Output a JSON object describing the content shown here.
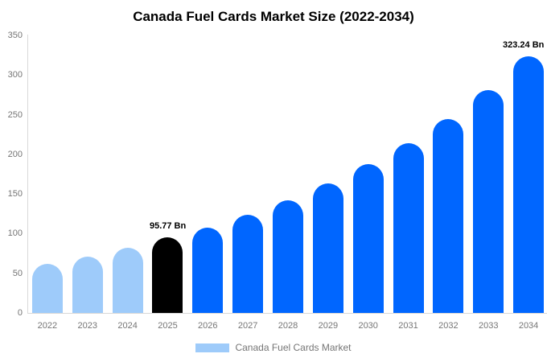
{
  "title": "Canada Fuel Cards Market Size (2022-2034)",
  "colors": {
    "axis_line": "#d8d8d8",
    "tick_text": "#757575",
    "title_text": "#000000",
    "annotation_text": "#000000",
    "light_blue": "#9ecbfa",
    "highlight_black": "#000000",
    "blue": "#0066ff"
  },
  "legend": {
    "label": "Canada Fuel Cards Market",
    "swatch_color": "#9ecbfa"
  },
  "chart_data": {
    "type": "bar",
    "title": "Canada Fuel Cards Market Size (2022-2034)",
    "xlabel": "",
    "ylabel": "",
    "ylim": [
      0,
      350
    ],
    "y_ticks": [
      0,
      50,
      100,
      150,
      200,
      250,
      300,
      350
    ],
    "grid": false,
    "legend_position": "bottom",
    "categories": [
      "2022",
      "2023",
      "2024",
      "2025",
      "2026",
      "2027",
      "2028",
      "2029",
      "2030",
      "2031",
      "2032",
      "2033",
      "2034"
    ],
    "series": [
      {
        "name": "Canada Fuel Cards Market",
        "values": [
          62,
          71,
          82,
          95.77,
          108,
          124,
          142,
          163,
          188,
          214,
          245,
          281,
          323.24
        ],
        "bar_colors": [
          "#9ecbfa",
          "#9ecbfa",
          "#9ecbfa",
          "#000000",
          "#0066ff",
          "#0066ff",
          "#0066ff",
          "#0066ff",
          "#0066ff",
          "#0066ff",
          "#0066ff",
          "#0066ff",
          "#0066ff"
        ]
      }
    ],
    "annotations": [
      {
        "category": "2025",
        "text": "95.77 Bn"
      },
      {
        "category": "2034",
        "text": "323.24 Bn"
      }
    ]
  }
}
